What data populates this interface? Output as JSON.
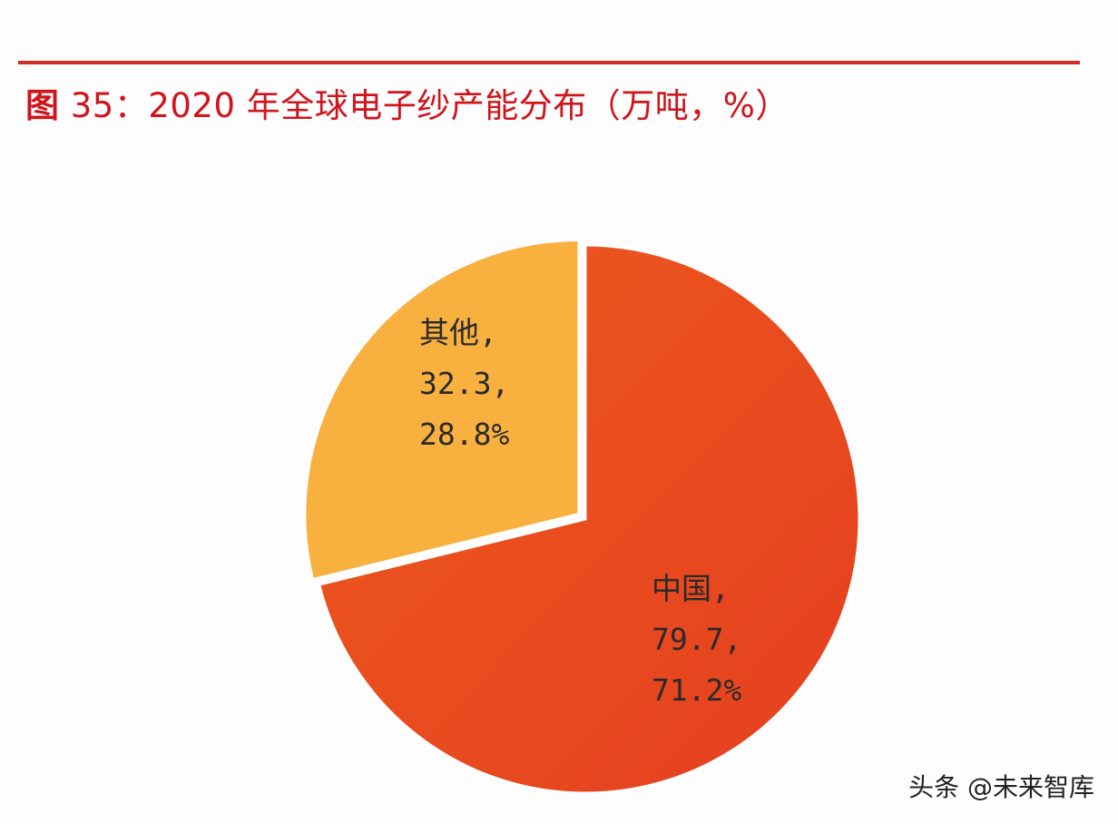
{
  "title": {
    "prefix": "图",
    "text": "35：2020 年全球电子纱产能分布（万吨，%）"
  },
  "watermark": "头条 @未来智库",
  "colors": {
    "china": "#e9461f",
    "other": "#f8b03f",
    "title": "#d0141b"
  },
  "chart_data": {
    "type": "pie",
    "title": "图35：2020年全球电子纱产能分布（万吨，%）",
    "slices": [
      {
        "name": "中国",
        "value": 79.7,
        "percent": 71.2,
        "value_label": "79.7,",
        "percent_label": "71.2%",
        "name_label": "中国,",
        "color": "#e9461f"
      },
      {
        "name": "其他",
        "value": 32.3,
        "percent": 28.8,
        "value_label": "32.3,",
        "percent_label": "28.8%",
        "name_label": "其他,",
        "color": "#f8b03f"
      }
    ],
    "start_angle": "top",
    "direction": "clockwise",
    "exploded": [
      "其他"
    ]
  }
}
